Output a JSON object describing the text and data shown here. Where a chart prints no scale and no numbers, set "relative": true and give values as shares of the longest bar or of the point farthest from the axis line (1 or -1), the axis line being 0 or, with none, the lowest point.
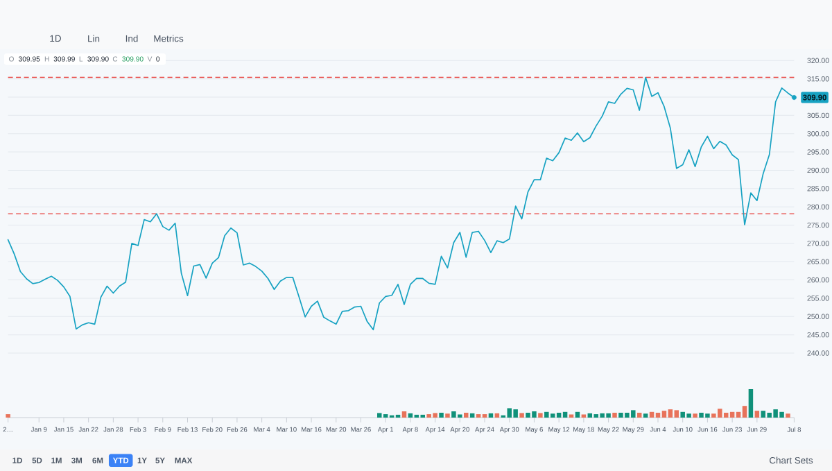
{
  "chart_data": [
    {
      "type": "line",
      "categories": [
        null,
        null,
        null,
        null,
        null,
        null,
        null,
        null,
        null,
        null,
        null,
        null,
        null,
        null,
        null,
        null,
        null,
        null,
        null,
        null,
        null,
        null,
        null,
        null,
        null,
        null,
        null,
        null,
        null,
        null,
        null,
        null,
        null,
        null,
        null,
        null,
        null,
        null,
        null,
        null,
        null,
        null,
        null,
        null,
        null,
        null,
        null,
        null,
        null,
        null,
        null,
        null,
        null,
        null,
        null,
        null,
        null,
        null,
        null,
        null,
        null,
        null,
        null,
        null,
        null,
        null,
        null,
        null,
        null,
        null,
        null,
        null,
        null,
        null,
        null,
        null,
        null,
        null,
        null,
        null,
        null,
        null,
        null,
        null,
        null,
        null,
        null,
        null,
        null,
        null,
        null,
        null,
        null,
        null,
        null,
        null,
        null,
        null,
        null,
        null,
        null,
        null,
        null,
        null,
        null,
        null,
        null,
        null,
        null,
        null,
        null,
        null,
        null,
        null,
        null,
        null,
        null,
        null,
        null,
        null,
        null,
        null,
        null,
        null,
        null,
        null,
        null,
        null
      ],
      "values": [
        271.0,
        267.1,
        262.3,
        260.3,
        259.0,
        259.3,
        260.2,
        261.0,
        259.9,
        258.1,
        255.5,
        246.6,
        247.7,
        248.3,
        247.9,
        255.3,
        258.3,
        256.4,
        258.3,
        259.4,
        270.0,
        269.4,
        276.5,
        275.9,
        278.1,
        274.6,
        273.6,
        275.5,
        261.8,
        255.7,
        263.8,
        264.2,
        260.5,
        264.6,
        266.1,
        272.1,
        274.2,
        272.9,
        264.1,
        264.6,
        263.7,
        262.4,
        260.4,
        257.4,
        259.7,
        260.7,
        260.7,
        255.4,
        249.9,
        252.8,
        254.2,
        249.8,
        248.8,
        247.9,
        251.4,
        251.6,
        252.6,
        252.8,
        248.7,
        246.4,
        253.7,
        255.5,
        255.8,
        258.8,
        253.3,
        258.8,
        260.4,
        260.4,
        259.1,
        258.8,
        266.5,
        263.3,
        270.2,
        273.0,
        266.2,
        273.0,
        273.3,
        270.8,
        267.5,
        270.7,
        270.2,
        271.2,
        280.2,
        276.7,
        284.1,
        287.4,
        287.4,
        293.3,
        292.6,
        294.8,
        298.8,
        298.2,
        300.2,
        297.8,
        298.9,
        302.1,
        304.8,
        308.7,
        308.3,
        310.8,
        312.4,
        312.0,
        306.4,
        315.4,
        310.2,
        311.2,
        307.4,
        301.5,
        290.5,
        291.5,
        295.6,
        291.0,
        296.4,
        299.3,
        295.9,
        297.9,
        296.9,
        294.2,
        292.9,
        275.1,
        283.8,
        281.7,
        289.1,
        294.3,
        308.7,
        312.5,
        311.1,
        309.9
      ],
      "color": "#17a2c2",
      "ylim": [
        240,
        320
      ],
      "yticks": [
        {
          "value": 240,
          "label": "240.00"
        },
        {
          "value": 245,
          "label": "245.00"
        },
        {
          "value": 250,
          "label": "250.00"
        },
        {
          "value": 255,
          "label": "255.00"
        },
        {
          "value": 260,
          "label": "260.00"
        },
        {
          "value": 265,
          "label": "265.00"
        },
        {
          "value": 270,
          "label": "270.00"
        },
        {
          "value": 275,
          "label": "275.00"
        },
        {
          "value": 280,
          "label": "280.00"
        },
        {
          "value": 285,
          "label": "285.00"
        },
        {
          "value": 290,
          "label": "290.00"
        },
        {
          "value": 295,
          "label": "295.00"
        },
        {
          "value": 300,
          "label": "300.00"
        },
        {
          "value": 305,
          "label": "305.00"
        },
        {
          "value": 310,
          "label": null
        },
        {
          "value": 315,
          "label": "315.00"
        },
        {
          "value": 320,
          "label": "320.00"
        }
      ],
      "grid": "y",
      "tick_labels": "y",
      "ref_lines": [
        {
          "axis": "y",
          "value": 315.4,
          "color": "#e8423f",
          "line_style": "dashed"
        },
        {
          "axis": "y",
          "value": 278.1,
          "color": "#e8423f",
          "line_style": "dashed"
        }
      ],
      "annotations": [
        "O",
        "309.95",
        "H",
        "309.99",
        "L",
        "309.90",
        "C",
        "309.90",
        "V",
        "0",
        "309.90",
        "1D",
        "Lin",
        "Ind",
        "Metrics",
        "1D",
        "5D",
        "1M",
        "3M",
        "6M",
        "YTD",
        "1Y",
        "5Y",
        "MAX",
        "Chart Sets"
      ]
    },
    {
      "type": "bar",
      "relative": true,
      "categories": [
        "2…",
        null,
        null,
        null,
        null,
        "Jan 9",
        null,
        null,
        null,
        "Jan 15",
        null,
        null,
        null,
        "Jan 22",
        null,
        null,
        null,
        "Jan 28",
        null,
        null,
        null,
        "Feb 3",
        null,
        null,
        null,
        "Feb 9",
        null,
        null,
        null,
        "Feb 13",
        null,
        null,
        null,
        "Feb 20",
        null,
        null,
        null,
        "Feb 26",
        null,
        null,
        null,
        "Mar 4",
        null,
        null,
        null,
        "Mar 10",
        null,
        null,
        null,
        "Mar 16",
        null,
        null,
        null,
        "Mar 20",
        null,
        null,
        null,
        "Mar 26",
        null,
        null,
        null,
        "Apr 1",
        null,
        null,
        null,
        "Apr 8",
        null,
        null,
        null,
        "Apr 14",
        null,
        null,
        null,
        "Apr 20",
        null,
        null,
        null,
        "Apr 24",
        null,
        null,
        null,
        "Apr 30",
        null,
        null,
        null,
        "May 6",
        null,
        null,
        null,
        "May 12",
        null,
        null,
        null,
        "May 18",
        null,
        null,
        null,
        "May 22",
        null,
        null,
        null,
        "May 29",
        null,
        null,
        null,
        "Jun 4",
        null,
        null,
        null,
        "Jun 10",
        null,
        null,
        null,
        "Jun 16",
        null,
        null,
        null,
        "Jun 23",
        null,
        null,
        null,
        "Jun 29",
        null,
        null,
        null,
        null,
        null,
        "Jul 8"
      ],
      "values": [
        0.12,
        null,
        null,
        null,
        null,
        null,
        null,
        null,
        null,
        null,
        null,
        null,
        null,
        null,
        null,
        null,
        null,
        null,
        null,
        null,
        null,
        null,
        null,
        null,
        null,
        null,
        null,
        null,
        null,
        null,
        null,
        null,
        null,
        null,
        null,
        null,
        null,
        null,
        null,
        null,
        null,
        null,
        null,
        null,
        null,
        null,
        null,
        null,
        null,
        null,
        null,
        null,
        null,
        null,
        null,
        null,
        null,
        null,
        null,
        null,
        0.16,
        0.12,
        0.08,
        0.1,
        0.22,
        0.15,
        0.1,
        0.1,
        0.12,
        0.16,
        0.17,
        0.14,
        0.22,
        0.11,
        0.17,
        0.15,
        0.12,
        0.12,
        0.15,
        0.15,
        0.08,
        0.33,
        0.29,
        0.16,
        0.17,
        0.22,
        0.16,
        0.2,
        0.14,
        0.17,
        0.2,
        0.11,
        0.2,
        0.11,
        0.15,
        0.12,
        0.15,
        0.15,
        0.17,
        0.17,
        0.17,
        0.26,
        0.17,
        0.14,
        0.2,
        0.17,
        0.24,
        0.29,
        0.26,
        0.2,
        0.14,
        0.14,
        0.17,
        0.14,
        0.14,
        0.31,
        0.17,
        0.2,
        0.2,
        0.41,
        1,
        0.24,
        0.24,
        0.17,
        0.29,
        0.2,
        0.14,
        null
      ],
      "colors": [
        "#e8735b",
        null,
        null,
        null,
        null,
        null,
        null,
        null,
        null,
        null,
        null,
        null,
        null,
        null,
        null,
        null,
        null,
        null,
        null,
        null,
        null,
        null,
        null,
        null,
        null,
        null,
        null,
        null,
        null,
        null,
        null,
        null,
        null,
        null,
        null,
        null,
        null,
        null,
        null,
        null,
        null,
        null,
        null,
        null,
        null,
        null,
        null,
        null,
        null,
        null,
        null,
        null,
        null,
        null,
        null,
        null,
        null,
        null,
        null,
        null,
        "#10917a",
        "#10917a",
        "#10917a",
        "#10917a",
        "#e8735b",
        "#10917a",
        "#10917a",
        "#10917a",
        "#e8735b",
        "#e8735b",
        "#10917a",
        "#e8735b",
        "#10917a",
        "#10917a",
        "#e8735b",
        "#10917a",
        "#e8735b",
        "#e8735b",
        "#10917a",
        "#e8735b",
        "#10917a",
        "#10917a",
        "#10917a",
        "#e8735b",
        "#10917a",
        "#10917a",
        "#e8735b",
        "#10917a",
        "#10917a",
        "#10917a",
        "#10917a",
        "#e8735b",
        "#10917a",
        "#e8735b",
        "#10917a",
        "#10917a",
        "#10917a",
        "#10917a",
        "#e8735b",
        "#10917a",
        "#10917a",
        "#10917a",
        "#e8735b",
        "#10917a",
        "#e8735b",
        "#e8735b",
        "#e8735b",
        "#e8735b",
        "#e8735b",
        "#10917a",
        "#10917a",
        "#e8735b",
        "#10917a",
        "#10917a",
        "#e8735b",
        "#e8735b",
        "#e8735b",
        "#e8735b",
        "#e8735b",
        "#e8735b",
        "#10917a",
        "#e8735b",
        "#10917a",
        "#10917a",
        "#10917a",
        "#10917a",
        "#e8735b",
        null
      ]
    }
  ]
}
